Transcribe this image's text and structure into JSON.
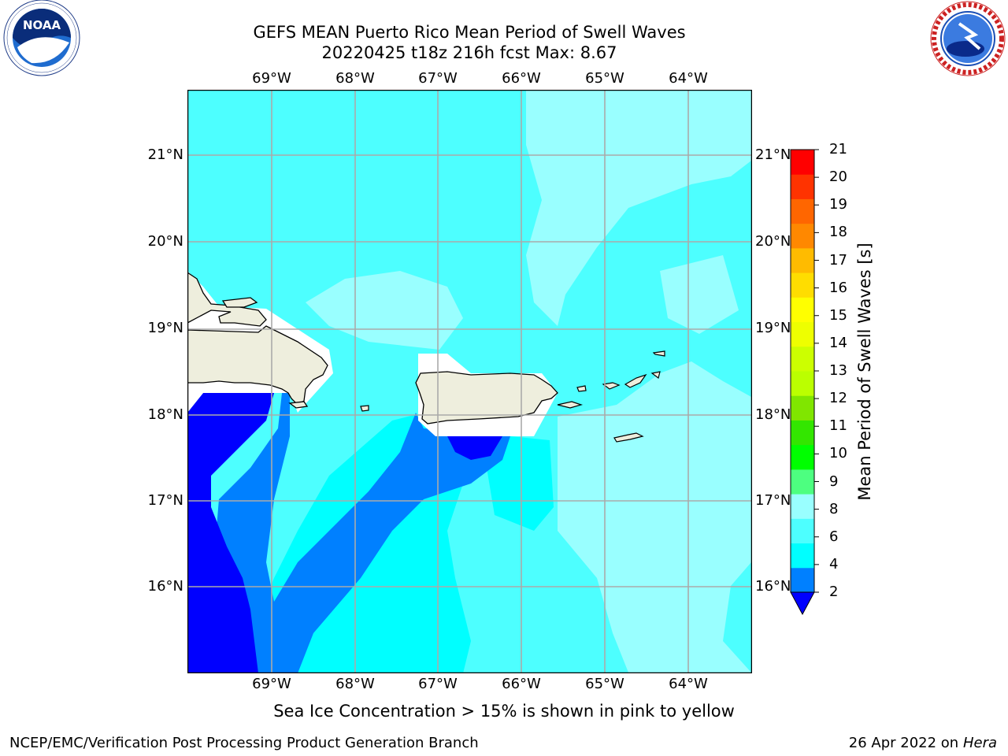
{
  "title": {
    "line1": "GEFS MEAN Puerto Rico Mean Period of Swell Waves",
    "line2": "20220425 t18z 216h fcst   Max: 8.67"
  },
  "logos": {
    "left": {
      "icon": "noaa-logo",
      "text": "NOAA",
      "ring_text": "NATIONAL OCEANIC AND ATMOSPHERIC ADMINISTRATION · U.S. DEPARTMENT OF COMMERCE"
    },
    "right": {
      "icon": "nws-logo",
      "ring_text": "NATIONAL WEATHER SERVICE"
    }
  },
  "map": {
    "lon_labels": [
      "69°W",
      "68°W",
      "67°W",
      "66°W",
      "65°W",
      "64°W"
    ],
    "lat_labels": [
      "21°N",
      "20°N",
      "19°N",
      "18°N",
      "17°N",
      "16°N"
    ],
    "colors": {
      "ocean_2_4": "#0080ff",
      "ocean_below_2": "#0000ff",
      "ocean_4_6": "#00ffff",
      "ocean_6_8": "#4dffff",
      "ocean_8_9": "#99ffff",
      "land": "#eeeedd",
      "gridline": "#aaaaaa"
    }
  },
  "colorbar": {
    "label": "Mean Period of Swell Waves [s]",
    "ticks": [
      "21",
      "20",
      "19",
      "18",
      "17",
      "16",
      "15",
      "14",
      "13",
      "12",
      "11",
      "10",
      "9",
      "8",
      "6",
      "4",
      "2"
    ],
    "colors_bottom_to_top": [
      "#0080ff",
      "#00ffff",
      "#4dffff",
      "#99ffff",
      "#4dff80",
      "#00ff00",
      "#33e600",
      "#80e600",
      "#bbff00",
      "#ccff00",
      "#eeff00",
      "#ffff00",
      "#ffdd00",
      "#ffbb00",
      "#ff8800",
      "#ff6600",
      "#ff3300",
      "#ff0000"
    ],
    "under_color": "#0000ff"
  },
  "footer": {
    "note": "Sea Ice Concentration > 15% is shown in pink to yellow",
    "left": "NCEP/EMC/Verification Post Processing Product Generation Branch",
    "right_date": "26 Apr 2022 on ",
    "right_host": "Hera"
  }
}
